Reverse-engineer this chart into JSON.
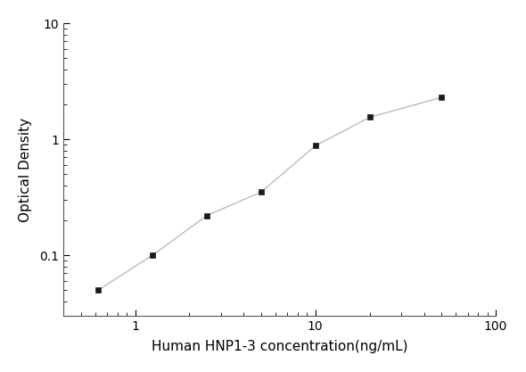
{
  "x_data": [
    0.625,
    1.25,
    2.5,
    5,
    10,
    20,
    50
  ],
  "y_data": [
    0.05,
    0.1,
    0.22,
    0.35,
    0.88,
    1.55,
    2.3
  ],
  "xlabel": "Human HNP1-3 concentration(ng/mL)",
  "ylabel": "Optical Density",
  "xlim": [
    0.4,
    100
  ],
  "ylim": [
    0.03,
    10
  ],
  "marker_color": "#1a1a1a",
  "line_color": "#bbbbbb",
  "marker_size": 5,
  "line_width": 1.0,
  "xlabel_fontsize": 11,
  "ylabel_fontsize": 11,
  "tick_fontsize": 10,
  "background_color": "#ffffff"
}
